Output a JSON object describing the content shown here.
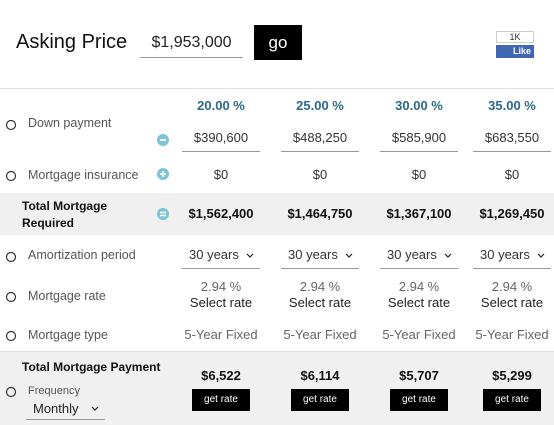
{
  "header": {
    "title": "Asking Price",
    "asking_price": "$1,953,000",
    "button": "go",
    "like_count": "1K",
    "like_button": "Like"
  },
  "percentages": [
    "20.00 %",
    "25.00 %",
    "30.00 %",
    "35.00 %"
  ],
  "rows": [
    {
      "label": "Down payment",
      "values": [
        "$390,600",
        "$488,250",
        "$585,900",
        "$683,550"
      ]
    },
    {
      "label": "Mortgage insurance",
      "values": [
        "$0",
        "$0",
        "$0",
        "$0"
      ]
    },
    {
      "label": "Total Mortgage Required",
      "values": [
        "$1,562,400",
        "$1,464,750",
        "$1,367,100",
        "$1,269,450"
      ]
    },
    {
      "label": "Amortization period",
      "values": [
        "30 years",
        "30 years",
        "30 years",
        "30 years"
      ]
    },
    {
      "label": "Mortgage rate",
      "values": [
        "2.94 %",
        "2.94 %",
        "2.94 %",
        "2.94 %"
      ],
      "links": [
        "Select rate",
        "Select rate",
        "Select rate",
        "Select rate"
      ]
    },
    {
      "label": "Mortgage type",
      "values": [
        "5-Year Fixed",
        "5-Year Fixed",
        "5-Year Fixed",
        "5-Year Fixed"
      ]
    },
    {
      "label": "Total Mortgage Payment",
      "sublabel": "Frequency",
      "frequency": "Monthly",
      "values": [
        "$6,522",
        "$6,114",
        "$5,707",
        "$5,299"
      ],
      "buttons": [
        "get rate",
        "get rate",
        "get rate",
        "get rate"
      ]
    }
  ]
}
